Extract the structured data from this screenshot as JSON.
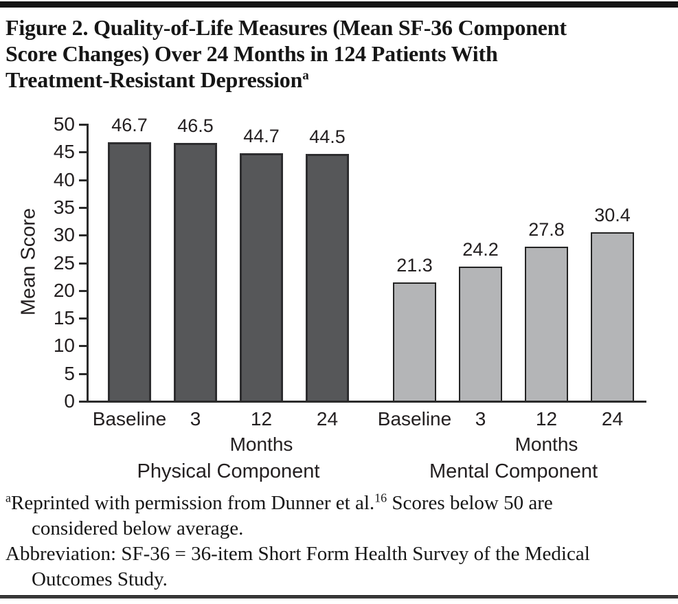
{
  "figure": {
    "title_lines": [
      "Figure 2. Quality-of-Life Measures (Mean SF-36 Component",
      "Score Changes) Over 24 Months in 124 Patients With",
      "Treatment-Resistant Depression"
    ],
    "title_superscript": "a"
  },
  "chart_data": {
    "type": "bar",
    "title": "Figure 2. Quality-of-Life Measures (Mean SF-36 Component Score Changes) Over 24 Months in 124 Patients With Treatment-Resistant Depression",
    "ylabel": "Mean Score",
    "xlabel": "",
    "ylim": [
      0,
      50
    ],
    "ytick_step": 5,
    "grid": false,
    "legend_position": "none",
    "value_labels_shown": true,
    "categories": [
      "Baseline",
      "3",
      "12",
      "24"
    ],
    "x_unit_label": "Months",
    "series": [
      {
        "name": "Physical Component",
        "color": "#565759",
        "border_color": "#2d2d2f",
        "values": [
          46.7,
          46.5,
          44.7,
          44.5
        ]
      },
      {
        "name": "Mental Component",
        "color": "#b4b5b7",
        "border_color": "#232323",
        "values": [
          21.3,
          24.2,
          27.8,
          30.4
        ]
      }
    ]
  },
  "footnotes": {
    "note_a": {
      "marker": "a",
      "line1_text": "Reprinted with permission from Dunner et al.",
      "ref": "16",
      "line1_tail": " Scores below 50 are",
      "line2": "considered below average."
    },
    "abbreviation": {
      "line1": "Abbreviation: SF-36 = 36-item Short Form Health Survey of the Medical",
      "line2": "Outcomes Study."
    }
  },
  "colors": {
    "text": "#231f20",
    "axis": "#2b2b2b",
    "rule": "#141414"
  }
}
